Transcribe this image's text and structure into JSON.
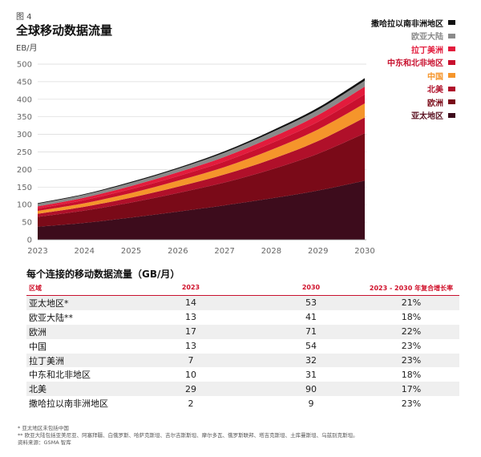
{
  "figure_label": "图 4",
  "chart_data": {
    "type": "area",
    "stacked": true,
    "title": "全球移动数据流量",
    "ylabel": "EB/月",
    "ylim": [
      0,
      500
    ],
    "yticks": [
      0,
      50,
      100,
      150,
      200,
      250,
      300,
      350,
      400,
      450,
      500
    ],
    "x": [
      "2023",
      "2024",
      "2025",
      "2026",
      "2027",
      "2028",
      "2029",
      "2030"
    ],
    "legend_position": "top-right",
    "series": [
      {
        "name": "亚太地区",
        "color": "#3d0c1c",
        "values": [
          37,
          48,
          63,
          80,
          98,
          118,
          140,
          168
        ]
      },
      {
        "name": "欧洲",
        "color": "#7a0a18",
        "values": [
          28,
          35,
          43,
          53,
          65,
          82,
          105,
          135
        ]
      },
      {
        "name": "北美",
        "color": "#b0102a",
        "values": [
          9,
          11,
          14,
          18,
          23,
          29,
          36,
          45
        ]
      },
      {
        "name": "中国",
        "color": "#f5952b",
        "values": [
          8,
          10,
          13,
          17,
          21,
          27,
          33,
          40
        ]
      },
      {
        "name": "中东和北非地区",
        "color": "#c8102e",
        "values": [
          7,
          9,
          11,
          13,
          16,
          19,
          22,
          26
        ]
      },
      {
        "name": "拉丁美洲",
        "color": "#e31b3c",
        "values": [
          6,
          7,
          9,
          11,
          13,
          16,
          19,
          22
        ]
      },
      {
        "name": "欧亚大陆",
        "color": "#8a8a8a",
        "values": [
          7,
          8,
          9,
          10,
          12,
          14,
          15,
          17
        ]
      },
      {
        "name": "撒哈拉以南非洲地区",
        "color": "#111111",
        "values": [
          2,
          2,
          3,
          3,
          4,
          5,
          6,
          7
        ]
      }
    ]
  },
  "table": {
    "title": "每个连接的移动数据流量（GB/月）",
    "headers": [
      "区域",
      "2023",
      "2030",
      "2023 - 2030 年复合增长率"
    ],
    "rows": [
      [
        "亚太地区*",
        "14",
        "53",
        "21%"
      ],
      [
        "欧亚大陆**",
        "13",
        "41",
        "18%"
      ],
      [
        "欧洲",
        "17",
        "71",
        "22%"
      ],
      [
        "中国",
        "13",
        "54",
        "23%"
      ],
      [
        "拉丁美洲",
        "7",
        "32",
        "23%"
      ],
      [
        "中东和北非地区",
        "10",
        "31",
        "18%"
      ],
      [
        "北美",
        "29",
        "90",
        "17%"
      ],
      [
        "撒哈拉以南非洲地区",
        "2",
        "9",
        "23%"
      ]
    ]
  },
  "footnotes": [
    "* 亚太地区未包括中国",
    "** 欧亚大陆包括亚美尼亚、阿塞拜疆、白俄罗斯、哈萨克斯坦、吉尔吉斯斯坦、摩尔多瓦、俄罗斯联邦、塔吉克斯坦、土库曼斯坦、乌兹别克斯坦。",
    "资料来源：GSMA 智库"
  ]
}
